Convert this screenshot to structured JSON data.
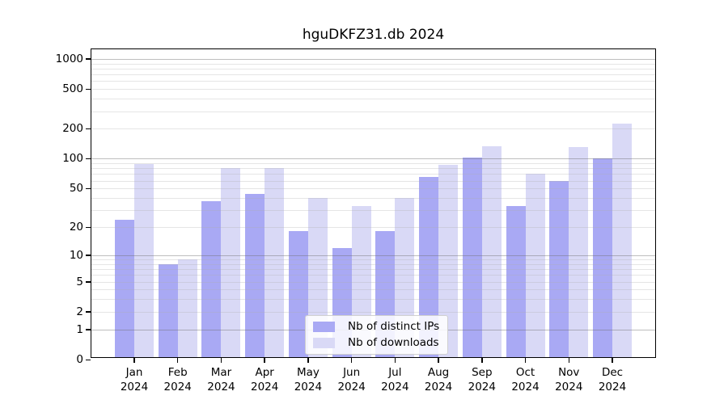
{
  "chart_data": {
    "type": "bar",
    "title": "hguDKFZ31.db 2024",
    "categories": [
      "Jan",
      "Feb",
      "Mar",
      "Apr",
      "May",
      "Jun",
      "Jul",
      "Aug",
      "Sep",
      "Oct",
      "Nov",
      "Dec"
    ],
    "x_year_label": "2024",
    "series": [
      {
        "name": "Nb of distinct IPs",
        "color": "#a9a9f4",
        "values": [
          24,
          8,
          37,
          44,
          18,
          12,
          18,
          65,
          103,
          33,
          60,
          100
        ]
      },
      {
        "name": "Nb of downloads",
        "color": "#d9d9f6",
        "values": [
          88,
          9,
          80,
          80,
          40,
          33,
          40,
          87,
          134,
          70,
          132,
          224
        ]
      }
    ],
    "y_scale": "log10(1+x)",
    "y_ticks": [
      0,
      1,
      2,
      5,
      10,
      20,
      50,
      100,
      200,
      500,
      1000
    ],
    "y_minor_ticks": [
      3,
      4,
      6,
      7,
      8,
      9,
      30,
      40,
      60,
      70,
      80,
      90,
      300,
      400,
      600,
      700,
      800,
      900
    ],
    "ylim": [
      0,
      1270
    ],
    "grid": true,
    "legend_position": "bottom-center-inside",
    "colors": {
      "major_grid": "rgba(110,110,110,0.45)",
      "minor_grid": "rgba(175,175,175,0.32)",
      "axis": "#000000"
    }
  }
}
